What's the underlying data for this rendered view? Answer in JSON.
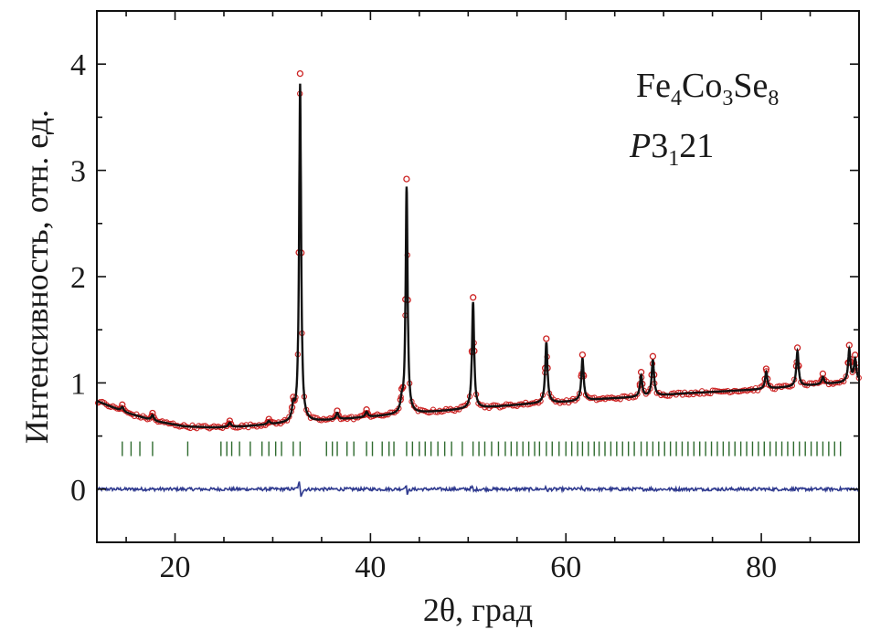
{
  "chart_data": {
    "type": "line",
    "title": "",
    "xlabel": "2θ, град",
    "ylabel": "Интенсивность, отн. ед.",
    "xlim": [
      12,
      90
    ],
    "ylim": [
      -0.5,
      4.5
    ],
    "x_ticks": [
      20,
      40,
      60,
      80
    ],
    "y_ticks": [
      0,
      1,
      2,
      3,
      4
    ],
    "grid": false,
    "legend": "none",
    "annotations": {
      "formula_parts": [
        {
          "text": "Fe",
          "sub": "4"
        },
        {
          "text": "Co",
          "sub": "3"
        },
        {
          "text": "Se",
          "sub": "8"
        }
      ],
      "space_group": {
        "italic": "P",
        "main": "3",
        "sub": "1",
        "tail": "21"
      }
    },
    "background": {
      "x": [
        12,
        15,
        18,
        21,
        24,
        27,
        30,
        33,
        36,
        40,
        44,
        48,
        52,
        56,
        60,
        64,
        68,
        72,
        76,
        80,
        84,
        88,
        90
      ],
      "y": [
        0.83,
        0.72,
        0.64,
        0.59,
        0.58,
        0.59,
        0.61,
        0.63,
        0.65,
        0.68,
        0.71,
        0.74,
        0.77,
        0.8,
        0.82,
        0.85,
        0.87,
        0.9,
        0.92,
        0.94,
        0.97,
        1.0,
        1.02
      ]
    },
    "peaks": [
      {
        "x": 14.6,
        "height": 0.04,
        "width": 0.15
      },
      {
        "x": 17.7,
        "height": 0.05,
        "width": 0.15
      },
      {
        "x": 25.6,
        "height": 0.04,
        "width": 0.15
      },
      {
        "x": 29.6,
        "height": 0.03,
        "width": 0.15
      },
      {
        "x": 32.1,
        "height": 0.13,
        "width": 0.15
      },
      {
        "x": 32.8,
        "height": 3.18,
        "width": 0.12
      },
      {
        "x": 36.6,
        "height": 0.06,
        "width": 0.15
      },
      {
        "x": 39.6,
        "height": 0.05,
        "width": 0.15
      },
      {
        "x": 43.2,
        "height": 0.1,
        "width": 0.15
      },
      {
        "x": 43.7,
        "height": 2.13,
        "width": 0.12
      },
      {
        "x": 50.5,
        "height": 1.0,
        "width": 0.13
      },
      {
        "x": 58.0,
        "height": 0.57,
        "width": 0.14
      },
      {
        "x": 61.7,
        "height": 0.4,
        "width": 0.14
      },
      {
        "x": 67.7,
        "height": 0.2,
        "width": 0.14
      },
      {
        "x": 68.9,
        "height": 0.34,
        "width": 0.14
      },
      {
        "x": 80.5,
        "height": 0.16,
        "width": 0.14
      },
      {
        "x": 83.7,
        "height": 0.33,
        "width": 0.14
      },
      {
        "x": 86.3,
        "height": 0.07,
        "width": 0.14
      },
      {
        "x": 89.0,
        "height": 0.3,
        "width": 0.14
      },
      {
        "x": 89.6,
        "height": 0.2,
        "width": 0.14
      }
    ],
    "series": [
      {
        "role": "observed",
        "color": "#cc2222",
        "marker": "open-circle"
      },
      {
        "role": "calculated",
        "color": "#111111",
        "marker": "line"
      },
      {
        "role": "difference",
        "color": "#2f3a8f",
        "marker": "line",
        "offset": 0.0
      },
      {
        "role": "bragg-positions",
        "color": "#2f6b2f",
        "marker": "tick",
        "level": 0.38,
        "x": [
          14.6,
          15.5,
          16.4,
          17.7,
          21.3,
          24.7,
          25.3,
          25.8,
          26.6,
          27.7,
          28.9,
          29.6,
          30.3,
          30.9,
          32.1,
          32.8,
          35.5,
          36.1,
          36.6,
          37.6,
          38.3,
          39.6,
          40.2,
          41.2,
          41.9,
          42.4,
          43.7,
          44.3,
          45.0,
          45.6,
          46.2,
          46.9,
          47.6,
          48.3,
          49.4,
          50.5,
          51.1,
          51.7,
          52.4,
          53.1,
          53.8,
          54.4,
          55.0,
          55.6,
          56.2,
          56.8,
          57.3,
          58.0,
          58.6,
          59.3,
          60.0,
          60.6,
          61.2,
          61.7,
          62.3,
          62.9,
          63.4,
          64.0,
          64.6,
          65.2,
          65.8,
          66.4,
          67.0,
          67.7,
          68.3,
          68.9,
          69.5,
          70.1,
          70.7,
          71.3,
          71.9,
          72.5,
          73.1,
          73.7,
          74.3,
          74.9,
          75.5,
          76.1,
          76.7,
          77.3,
          77.9,
          78.5,
          79.1,
          79.7,
          80.3,
          80.9,
          81.5,
          82.1,
          82.7,
          83.3,
          83.9,
          84.5,
          85.1,
          85.7,
          86.3,
          86.9,
          87.5,
          88.1
        ]
      }
    ]
  }
}
